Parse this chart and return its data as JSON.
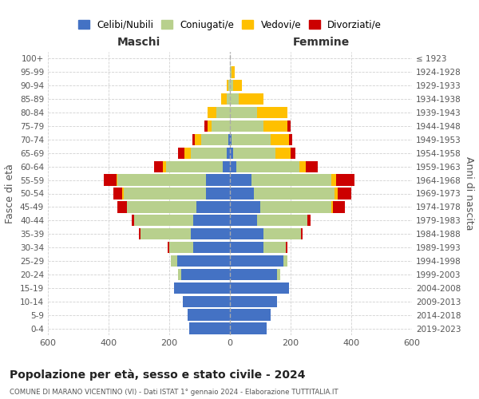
{
  "age_groups": [
    "0-4",
    "5-9",
    "10-14",
    "15-19",
    "20-24",
    "25-29",
    "30-34",
    "35-39",
    "40-44",
    "45-49",
    "50-54",
    "55-59",
    "60-64",
    "65-69",
    "70-74",
    "75-79",
    "80-84",
    "85-89",
    "90-94",
    "95-99",
    "100+"
  ],
  "birth_years": [
    "2019-2023",
    "2014-2018",
    "2009-2013",
    "2004-2008",
    "1999-2003",
    "1994-1998",
    "1989-1993",
    "1984-1988",
    "1979-1983",
    "1974-1978",
    "1969-1973",
    "1964-1968",
    "1959-1963",
    "1954-1958",
    "1949-1953",
    "1944-1948",
    "1939-1943",
    "1934-1938",
    "1929-1933",
    "1924-1928",
    "≤ 1923"
  ],
  "male": {
    "celibi": [
      135,
      140,
      155,
      185,
      160,
      175,
      120,
      130,
      120,
      110,
      80,
      80,
      25,
      10,
      5,
      0,
      0,
      0,
      0,
      0,
      0
    ],
    "coniugati": [
      0,
      0,
      0,
      0,
      10,
      20,
      80,
      165,
      195,
      230,
      270,
      290,
      185,
      120,
      90,
      60,
      45,
      10,
      5,
      0,
      0
    ],
    "vedovi": [
      0,
      0,
      0,
      0,
      0,
      0,
      0,
      0,
      0,
      0,
      5,
      5,
      10,
      20,
      20,
      15,
      30,
      20,
      5,
      0,
      0
    ],
    "divorziati": [
      0,
      0,
      0,
      0,
      0,
      0,
      5,
      5,
      10,
      30,
      30,
      40,
      30,
      20,
      10,
      10,
      0,
      0,
      0,
      0,
      0
    ]
  },
  "female": {
    "nubili": [
      120,
      135,
      155,
      195,
      155,
      175,
      110,
      110,
      90,
      100,
      80,
      70,
      20,
      10,
      5,
      0,
      0,
      0,
      0,
      0,
      0
    ],
    "coniugate": [
      0,
      0,
      0,
      0,
      10,
      15,
      75,
      125,
      165,
      235,
      265,
      265,
      210,
      140,
      130,
      110,
      90,
      30,
      10,
      5,
      0
    ],
    "vedove": [
      0,
      0,
      0,
      0,
      0,
      0,
      0,
      0,
      0,
      5,
      10,
      15,
      20,
      50,
      60,
      80,
      100,
      80,
      30,
      10,
      0
    ],
    "divorziate": [
      0,
      0,
      0,
      0,
      0,
      0,
      5,
      5,
      10,
      40,
      45,
      60,
      40,
      15,
      10,
      10,
      0,
      0,
      0,
      0,
      0
    ]
  },
  "colors": {
    "celibi": "#4472c4",
    "coniugati": "#b8d08d",
    "vedovi": "#ffc000",
    "divorziati": "#cc0000"
  },
  "title": "Popolazione per età, sesso e stato civile - 2024",
  "subtitle": "COMUNE DI MARANO VICENTINO (VI) - Dati ISTAT 1° gennaio 2024 - Elaborazione TUTTITALIA.IT",
  "xlabel_maschi": "Maschi",
  "xlabel_femmine": "Femmine",
  "ylabel_left": "Fasce di età",
  "ylabel_right": "Anni di nascita",
  "xlim": 600,
  "legend_labels": [
    "Celibi/Nubili",
    "Coniugati/e",
    "Vedovi/e",
    "Divorziati/e"
  ],
  "bg_color": "#ffffff",
  "grid_color": "#cccccc"
}
